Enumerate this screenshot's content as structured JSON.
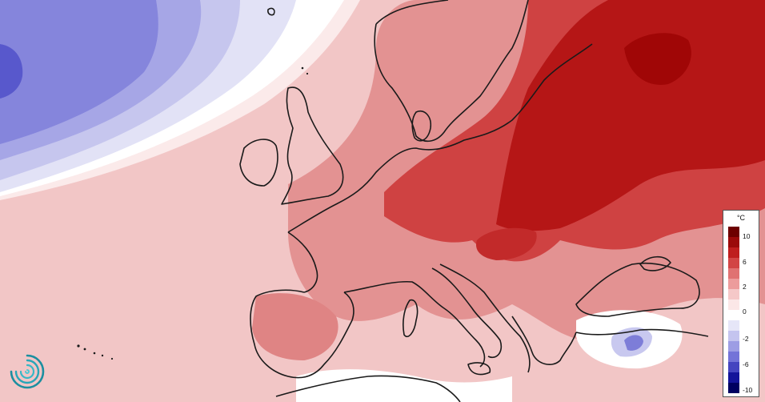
{
  "legend": {
    "unit": "°C",
    "ticks": [
      "10",
      "6",
      "2",
      "0",
      "-2",
      "-6",
      "-10"
    ],
    "colors": [
      "#6d0000",
      "#9b0a0a",
      "#bf1e1e",
      "#d24545",
      "#e07272",
      "#ec9c9c",
      "#f5c8c8",
      "#fbe7e7",
      "#ffffff",
      "#e6e6f8",
      "#c4c4ef",
      "#9d9de4",
      "#7373d8",
      "#4545c0",
      "#14149a",
      "#000060"
    ]
  },
  "colors": {
    "cold_deep": "#5a5ad0",
    "cold_mid": "#9a9ae2",
    "cold_light": "#d8d8f4",
    "neutral": "#ffffff",
    "warm_light": "#f4cccc",
    "warm_mid": "#e08484",
    "warm_strong": "#c82a2a",
    "warm_deep": "#a80d0d",
    "coast": "#1a1a1a"
  },
  "logo": {
    "icon": "swirl-logo-icon"
  }
}
